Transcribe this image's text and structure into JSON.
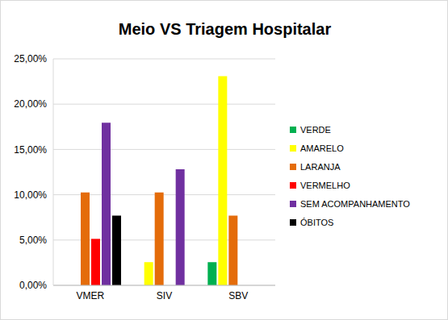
{
  "chart_data": {
    "type": "bar",
    "title": "Meio VS Triagem Hospitalar",
    "categories": [
      "VMER",
      "SIV",
      "SBV"
    ],
    "series": [
      {
        "name": "VERDE",
        "color": "#00B050",
        "values": [
          0,
          0,
          2.56
        ]
      },
      {
        "name": "AMARELO",
        "color": "#FFFF00",
        "values": [
          0,
          2.56,
          23.08
        ]
      },
      {
        "name": "LARANJA",
        "color": "#E46C0A",
        "values": [
          10.26,
          10.26,
          7.69
        ]
      },
      {
        "name": "VERMELHO",
        "color": "#FF0000",
        "values": [
          5.13,
          0,
          0
        ]
      },
      {
        "name": "SEM ACOMPANHAMENTO",
        "color": "#7030A0",
        "values": [
          17.95,
          12.82,
          0
        ]
      },
      {
        "name": "ÓBITOS",
        "color": "#000000",
        "values": [
          7.69,
          0,
          0
        ]
      }
    ],
    "ylim": [
      0,
      25
    ],
    "yticks": [
      {
        "value": 0,
        "label": "0,00%"
      },
      {
        "value": 5,
        "label": "5,00%"
      },
      {
        "value": 10,
        "label": "10,00%"
      },
      {
        "value": 15,
        "label": "15,00%"
      },
      {
        "value": 20,
        "label": "20,00%"
      },
      {
        "value": 25,
        "label": "25,00%"
      }
    ],
    "grid": true,
    "legend": "right"
  }
}
